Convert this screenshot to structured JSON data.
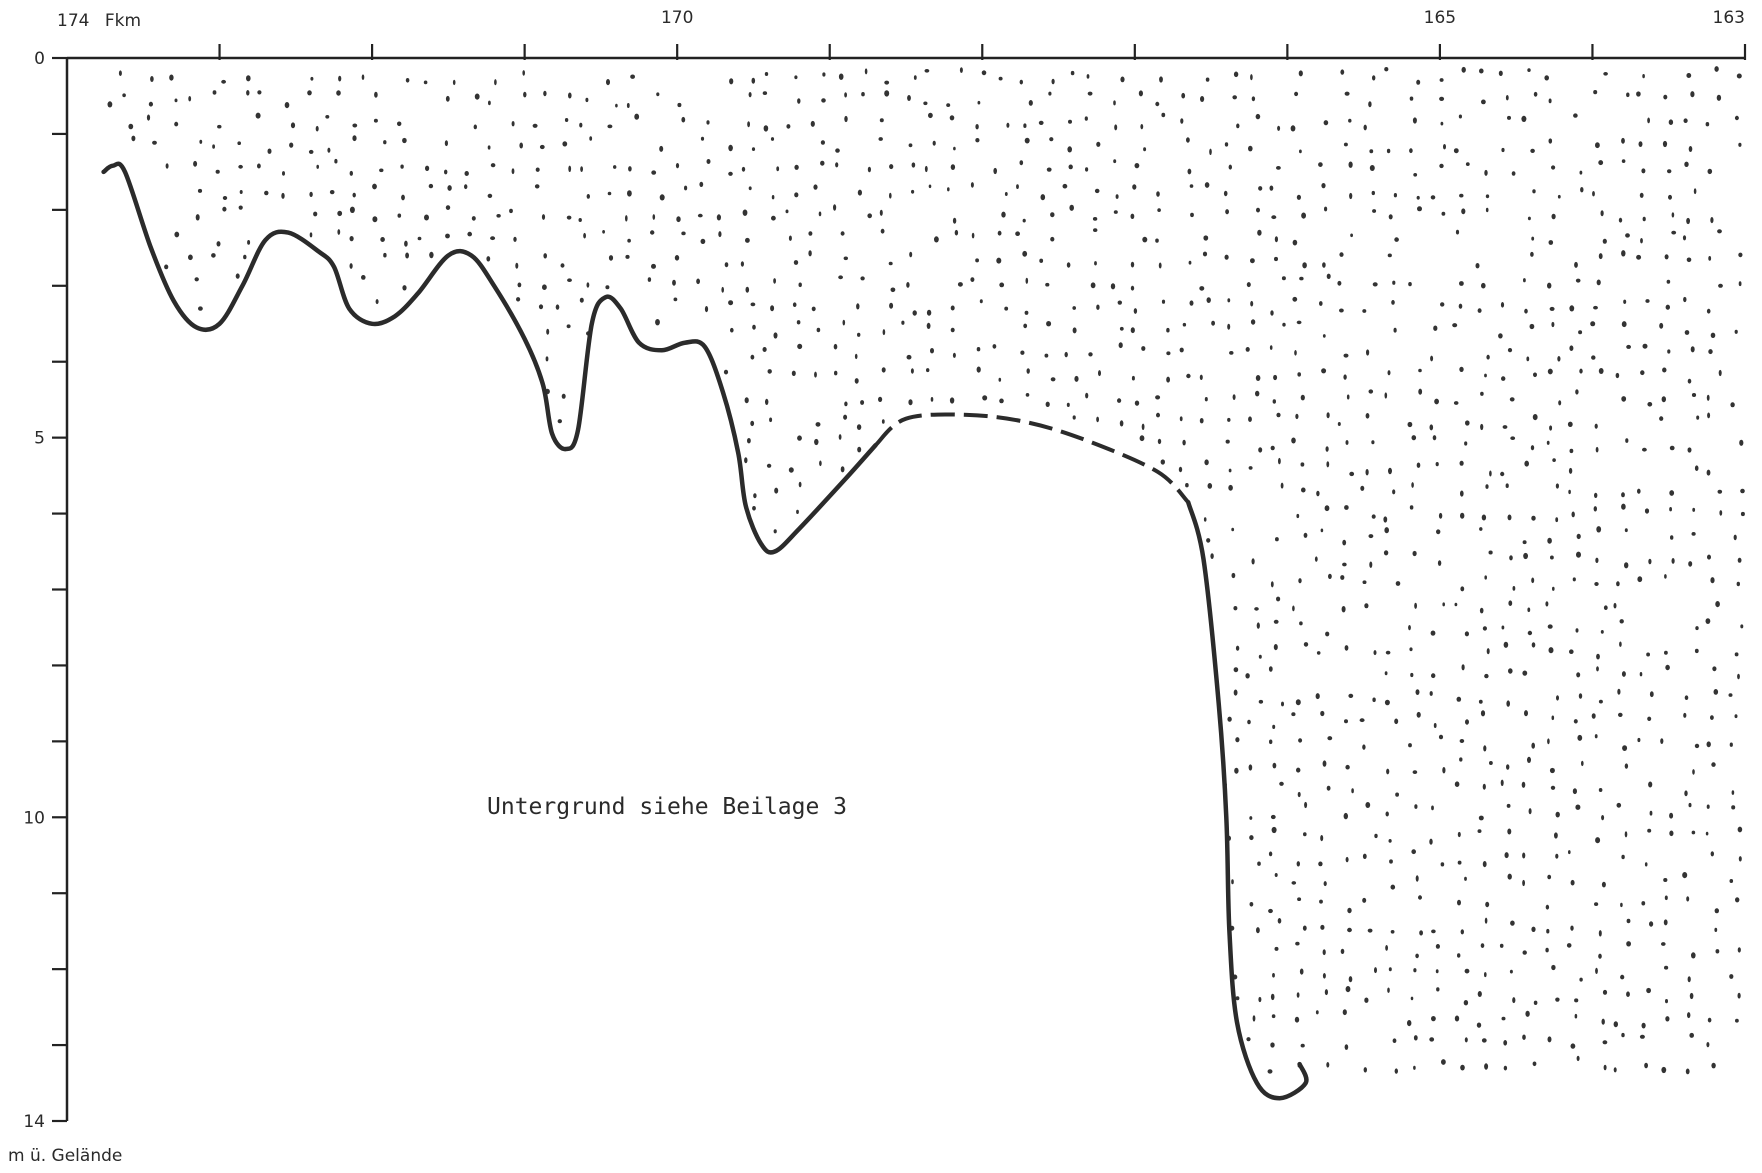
{
  "diagram": {
    "x_axis": {
      "title_prefix": "174",
      "unit": "Fkm",
      "tick_labels": [
        {
          "value": 170,
          "text": "170"
        },
        {
          "value": 165,
          "text": "165"
        },
        {
          "value": 163,
          "text": "163"
        }
      ],
      "range": [
        174,
        163
      ],
      "minor_tick_values": [
        173,
        172,
        171,
        169,
        168,
        167,
        166,
        164
      ]
    },
    "y_axis": {
      "unit_label": "m ü. Gelände",
      "range": [
        0,
        14
      ],
      "tick_labels": [
        {
          "value": 0,
          "text": "0"
        },
        {
          "value": 5,
          "text": "5"
        },
        {
          "value": 10,
          "text": "10"
        },
        {
          "value": 14,
          "text": "14"
        }
      ],
      "minor_tick_values": [
        1,
        2,
        3,
        4,
        6,
        7,
        8,
        9,
        11,
        12,
        13
      ]
    },
    "annotation": "Untergrund siehe Beilage 3",
    "profile_line": {
      "solid_segments": [
        [
          [
            173.76,
            1.5
          ],
          [
            173.7,
            1.42
          ],
          [
            173.62,
            1.5
          ],
          [
            173.45,
            2.5
          ],
          [
            173.3,
            3.2
          ],
          [
            173.15,
            3.55
          ],
          [
            173.0,
            3.5
          ],
          [
            172.85,
            3.0
          ],
          [
            172.7,
            2.4
          ],
          [
            172.55,
            2.3
          ],
          [
            172.35,
            2.55
          ],
          [
            172.25,
            2.75
          ],
          [
            172.15,
            3.3
          ],
          [
            172.0,
            3.5
          ],
          [
            171.85,
            3.4
          ],
          [
            171.7,
            3.1
          ],
          [
            171.5,
            2.6
          ],
          [
            171.35,
            2.6
          ],
          [
            171.2,
            3.0
          ],
          [
            171.0,
            3.7
          ],
          [
            170.88,
            4.3
          ],
          [
            170.82,
            4.95
          ],
          [
            170.73,
            5.15
          ],
          [
            170.65,
            4.9
          ],
          [
            170.56,
            3.5
          ],
          [
            170.47,
            3.15
          ],
          [
            170.37,
            3.3
          ],
          [
            170.25,
            3.75
          ],
          [
            170.1,
            3.85
          ],
          [
            169.95,
            3.75
          ],
          [
            169.82,
            3.8
          ],
          [
            169.7,
            4.4
          ],
          [
            169.6,
            5.2
          ],
          [
            169.55,
            5.9
          ],
          [
            169.45,
            6.4
          ],
          [
            169.36,
            6.5
          ],
          [
            169.2,
            6.2
          ],
          [
            168.9,
            5.55
          ],
          [
            168.7,
            5.1
          ]
        ]
      ],
      "dashed_segment": [
        [
          168.7,
          5.1
        ],
        [
          168.5,
          4.75
        ],
        [
          168.1,
          4.7
        ],
        [
          167.7,
          4.8
        ],
        [
          167.3,
          5.05
        ],
        [
          166.85,
          5.45
        ],
        [
          166.65,
          5.85
        ]
      ],
      "solid_tail": [
        [
          166.65,
          5.85
        ],
        [
          166.55,
          6.6
        ],
        [
          166.45,
          8.5
        ],
        [
          166.4,
          10.0
        ],
        [
          166.38,
          11.5
        ],
        [
          166.33,
          12.7
        ],
        [
          166.2,
          13.5
        ],
        [
          166.05,
          13.7
        ],
        [
          165.88,
          13.5
        ],
        [
          165.92,
          13.25
        ]
      ]
    },
    "colors": {
      "line": "#2b2b2b",
      "stipple": "#333333",
      "axis": "#222222"
    }
  }
}
